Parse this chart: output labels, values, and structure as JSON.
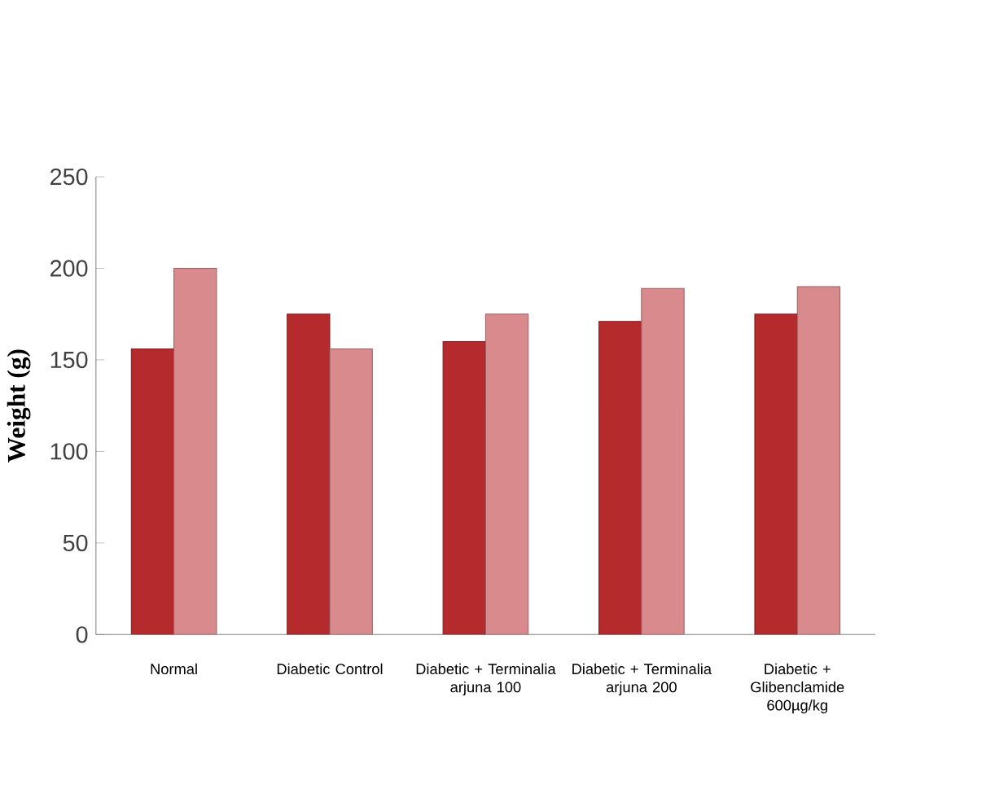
{
  "chart_data": {
    "type": "bar",
    "ylabel": "Weight (g)",
    "categories": [
      "Normal",
      "Diabetic Control",
      "Diabetic + Terminalia arjuna 100",
      "Diabetic + Terminalia arjuna 200",
      "Diabetic + Glibenclamide 600µg/kg"
    ],
    "series": [
      {
        "color": "#b52a2c",
        "values": [
          156,
          175,
          160,
          171,
          175
        ]
      },
      {
        "color": "#d98a8c",
        "values": [
          200,
          156,
          175,
          189,
          190
        ]
      }
    ],
    "ylim": [
      0,
      250
    ],
    "yticks": [
      0,
      50,
      100,
      150,
      200,
      250
    ]
  }
}
